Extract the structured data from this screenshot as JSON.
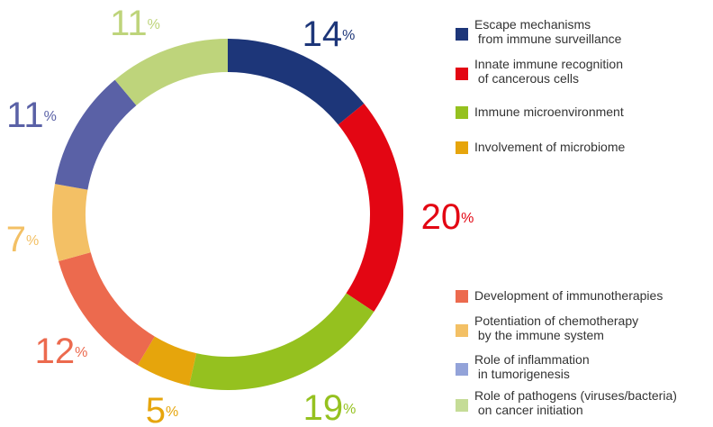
{
  "chart_data": {
    "type": "donut",
    "categories": [
      "Escape mechanisms\nfrom immune surveillance",
      "Innate immune recognition\nof cancerous cells",
      "Immune microenvironment",
      "Involvement of microbiome",
      "Development of immunotherapies",
      "Potentiation of chemotherapy\nby the immune system",
      "Role of inflammation\nin tumorigenesis",
      "Role of pathogens (viruses/bacteria)\non cancer initiation"
    ],
    "values": [
      14,
      20,
      19,
      5,
      12,
      7,
      11,
      11
    ],
    "value_labels": [
      "14%",
      "20%",
      "19%",
      "5%",
      "12%",
      "7%",
      "11%",
      "11%"
    ],
    "colors": [
      "#1d3679",
      "#e30613",
      "#95c11f",
      "#e6a50c",
      "#ec6a4e",
      "#f3c065",
      "#5a61a6",
      "#bed47b"
    ],
    "legend_colors": [
      "#1d3679",
      "#e30613",
      "#95c11f",
      "#e6a50c",
      "#ec6a4e",
      "#f3c065",
      "#93a3d9",
      "#c5dc97"
    ],
    "legend": "right"
  }
}
